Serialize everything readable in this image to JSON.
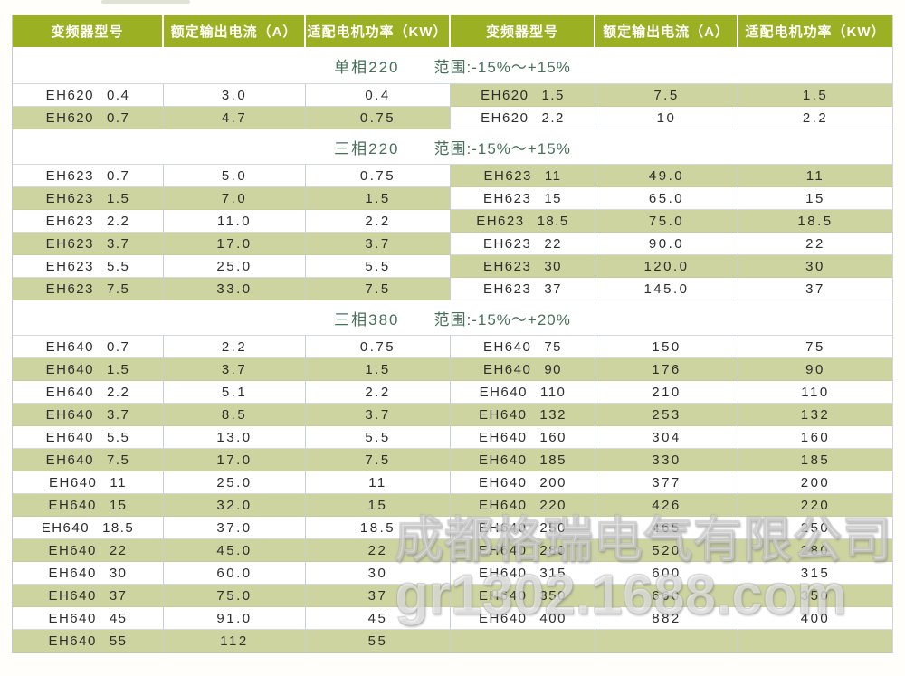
{
  "table": {
    "header_columns": [
      "变频器型号",
      "额定输出电流（A）",
      "适配电机功率（KW）",
      "变频器型号",
      "额定输出电流（A）",
      "适配电机功率（KW）"
    ],
    "sections": [
      {
        "phase": "单相220",
        "range": "范围:-15%～+15%",
        "left_rows": [
          {
            "model": "EH620",
            "spec": "0.4",
            "current": "3.0",
            "power": "0.4",
            "shaded": false
          },
          {
            "model": "EH620",
            "spec": "0.7",
            "current": "4.7",
            "power": "0.75",
            "shaded": true
          }
        ],
        "right_rows": [
          {
            "model": "EH620",
            "spec": "1.5",
            "current": "7.5",
            "power": "1.5",
            "shaded": true
          },
          {
            "model": "EH620",
            "spec": "2.2",
            "current": "10",
            "power": "2.2",
            "shaded": false
          }
        ]
      },
      {
        "phase": "三相220",
        "range": "范围:-15%～+15%",
        "left_rows": [
          {
            "model": "EH623",
            "spec": "0.7",
            "current": "5.0",
            "power": "0.75",
            "shaded": false
          },
          {
            "model": "EH623",
            "spec": "1.5",
            "current": "7.0",
            "power": "1.5",
            "shaded": true
          },
          {
            "model": "EH623",
            "spec": "2.2",
            "current": "11.0",
            "power": "2.2",
            "shaded": false
          },
          {
            "model": "EH623",
            "spec": "3.7",
            "current": "17.0",
            "power": "3.7",
            "shaded": true
          },
          {
            "model": "EH623",
            "spec": "5.5",
            "current": "25.0",
            "power": "5.5",
            "shaded": false
          },
          {
            "model": "EH623",
            "spec": "7.5",
            "current": "33.0",
            "power": "7.5",
            "shaded": true
          }
        ],
        "right_rows": [
          {
            "model": "EH623",
            "spec": "11",
            "current": "49.0",
            "power": "11",
            "shaded": true
          },
          {
            "model": "EH623",
            "spec": "15",
            "current": "65.0",
            "power": "15",
            "shaded": false
          },
          {
            "model": "EH623",
            "spec": "18.5",
            "current": "75.0",
            "power": "18.5",
            "shaded": true
          },
          {
            "model": "EH623",
            "spec": "22",
            "current": "90.0",
            "power": "22",
            "shaded": false
          },
          {
            "model": "EH623",
            "spec": "30",
            "current": "120.0",
            "power": "30",
            "shaded": true
          },
          {
            "model": "EH623",
            "spec": "37",
            "current": "145.0",
            "power": "37",
            "shaded": false
          }
        ]
      },
      {
        "phase": "三相380",
        "range": "范围:-15%～+20%",
        "left_rows": [
          {
            "model": "EH640",
            "spec": "0.7",
            "current": "2.2",
            "power": "0.75",
            "shaded": false
          },
          {
            "model": "EH640",
            "spec": "1.5",
            "current": "3.7",
            "power": "1.5",
            "shaded": true
          },
          {
            "model": "EH640",
            "spec": "2.2",
            "current": "5.1",
            "power": "2.2",
            "shaded": false
          },
          {
            "model": "EH640",
            "spec": "3.7",
            "current": "8.5",
            "power": "3.7",
            "shaded": true
          },
          {
            "model": "EH640",
            "spec": "5.5",
            "current": "13.0",
            "power": "5.5",
            "shaded": false
          },
          {
            "model": "EH640",
            "spec": "7.5",
            "current": "17.0",
            "power": "7.5",
            "shaded": true
          },
          {
            "model": "EH640",
            "spec": "11",
            "current": "25.0",
            "power": "11",
            "shaded": false
          },
          {
            "model": "EH640",
            "spec": "15",
            "current": "32.0",
            "power": "15",
            "shaded": true
          },
          {
            "model": "EH640",
            "spec": "18.5",
            "current": "37.0",
            "power": "18.5",
            "shaded": false
          },
          {
            "model": "EH640",
            "spec": "22",
            "current": "45.0",
            "power": "22",
            "shaded": true
          },
          {
            "model": "EH640",
            "spec": "30",
            "current": "60.0",
            "power": "30",
            "shaded": false
          },
          {
            "model": "EH640",
            "spec": "37",
            "current": "75.0",
            "power": "37",
            "shaded": true
          },
          {
            "model": "EH640",
            "spec": "45",
            "current": "91.0",
            "power": "45",
            "shaded": false
          },
          {
            "model": "EH640",
            "spec": "55",
            "current": "112",
            "power": "55",
            "shaded": true
          }
        ],
        "right_rows": [
          {
            "model": "EH640",
            "spec": "75",
            "current": "150",
            "power": "75",
            "shaded": false
          },
          {
            "model": "EH640",
            "spec": "90",
            "current": "176",
            "power": "90",
            "shaded": true
          },
          {
            "model": "EH640",
            "spec": "110",
            "current": "210",
            "power": "110",
            "shaded": false
          },
          {
            "model": "EH640",
            "spec": "132",
            "current": "253",
            "power": "132",
            "shaded": true
          },
          {
            "model": "EH640",
            "spec": "160",
            "current": "304",
            "power": "160",
            "shaded": false
          },
          {
            "model": "EH640",
            "spec": "185",
            "current": "330",
            "power": "185",
            "shaded": true
          },
          {
            "model": "EH640",
            "spec": "200",
            "current": "377",
            "power": "200",
            "shaded": false
          },
          {
            "model": "EH640",
            "spec": "220",
            "current": "426",
            "power": "220",
            "shaded": true
          },
          {
            "model": "EH640",
            "spec": "250",
            "current": "465",
            "power": "250",
            "shaded": false
          },
          {
            "model": "EH640",
            "spec": "280",
            "current": "520",
            "power": "280",
            "shaded": true
          },
          {
            "model": "EH640",
            "spec": "315",
            "current": "600",
            "power": "315",
            "shaded": false
          },
          {
            "model": "EH640",
            "spec": "350",
            "current": "660",
            "power": "350",
            "shaded": true
          },
          {
            "model": "EH640",
            "spec": "400",
            "current": "882",
            "power": "400",
            "shaded": false
          },
          {
            "model": "",
            "spec": "",
            "current": "",
            "power": "",
            "shaded": true
          }
        ]
      }
    ]
  },
  "watermark": {
    "company": "成都格瑞电气有限公司",
    "url": "gr1302.1688.com"
  },
  "colors": {
    "header_bg": "#9cb023",
    "header_text": "#ffffff",
    "row_shaded": "#cdd49f",
    "section_text": "#47705a",
    "cell_text": "#2e2e2e"
  }
}
